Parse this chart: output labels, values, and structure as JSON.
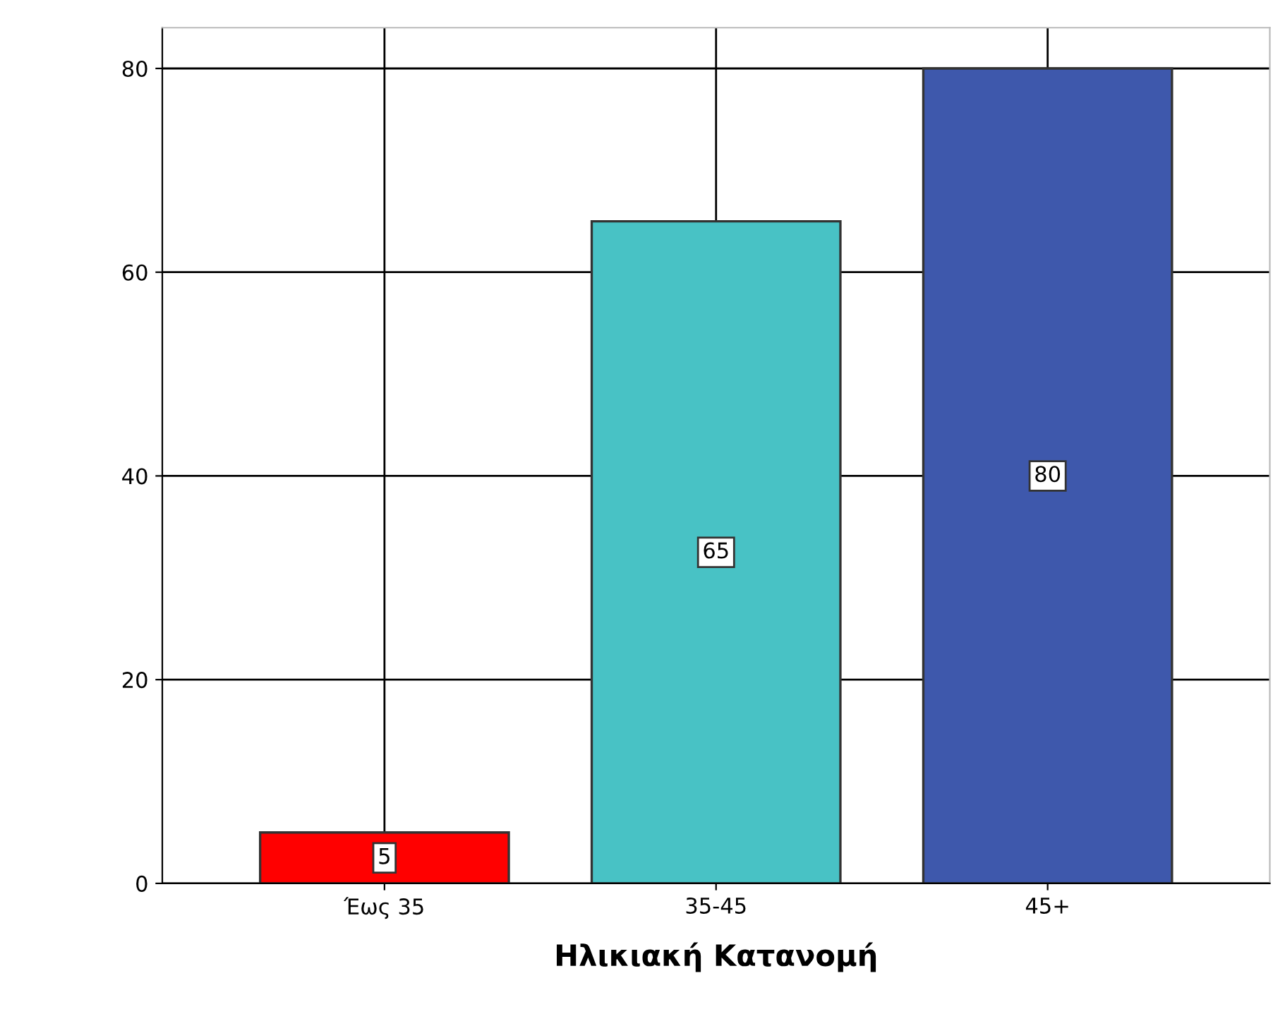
{
  "chart_data": {
    "type": "bar",
    "xlabel": "Ηλικιακή Κατανομή",
    "categories": [
      "Έως 35",
      "35-45",
      "45+"
    ],
    "values": [
      5,
      65,
      80
    ],
    "colors": [
      "#ff0000",
      "#48c2c5",
      "#3e58ac"
    ],
    "ylim": [
      0,
      84
    ],
    "yticks": [
      0,
      20,
      40,
      60,
      80
    ],
    "grid": true,
    "data_labels": true
  }
}
